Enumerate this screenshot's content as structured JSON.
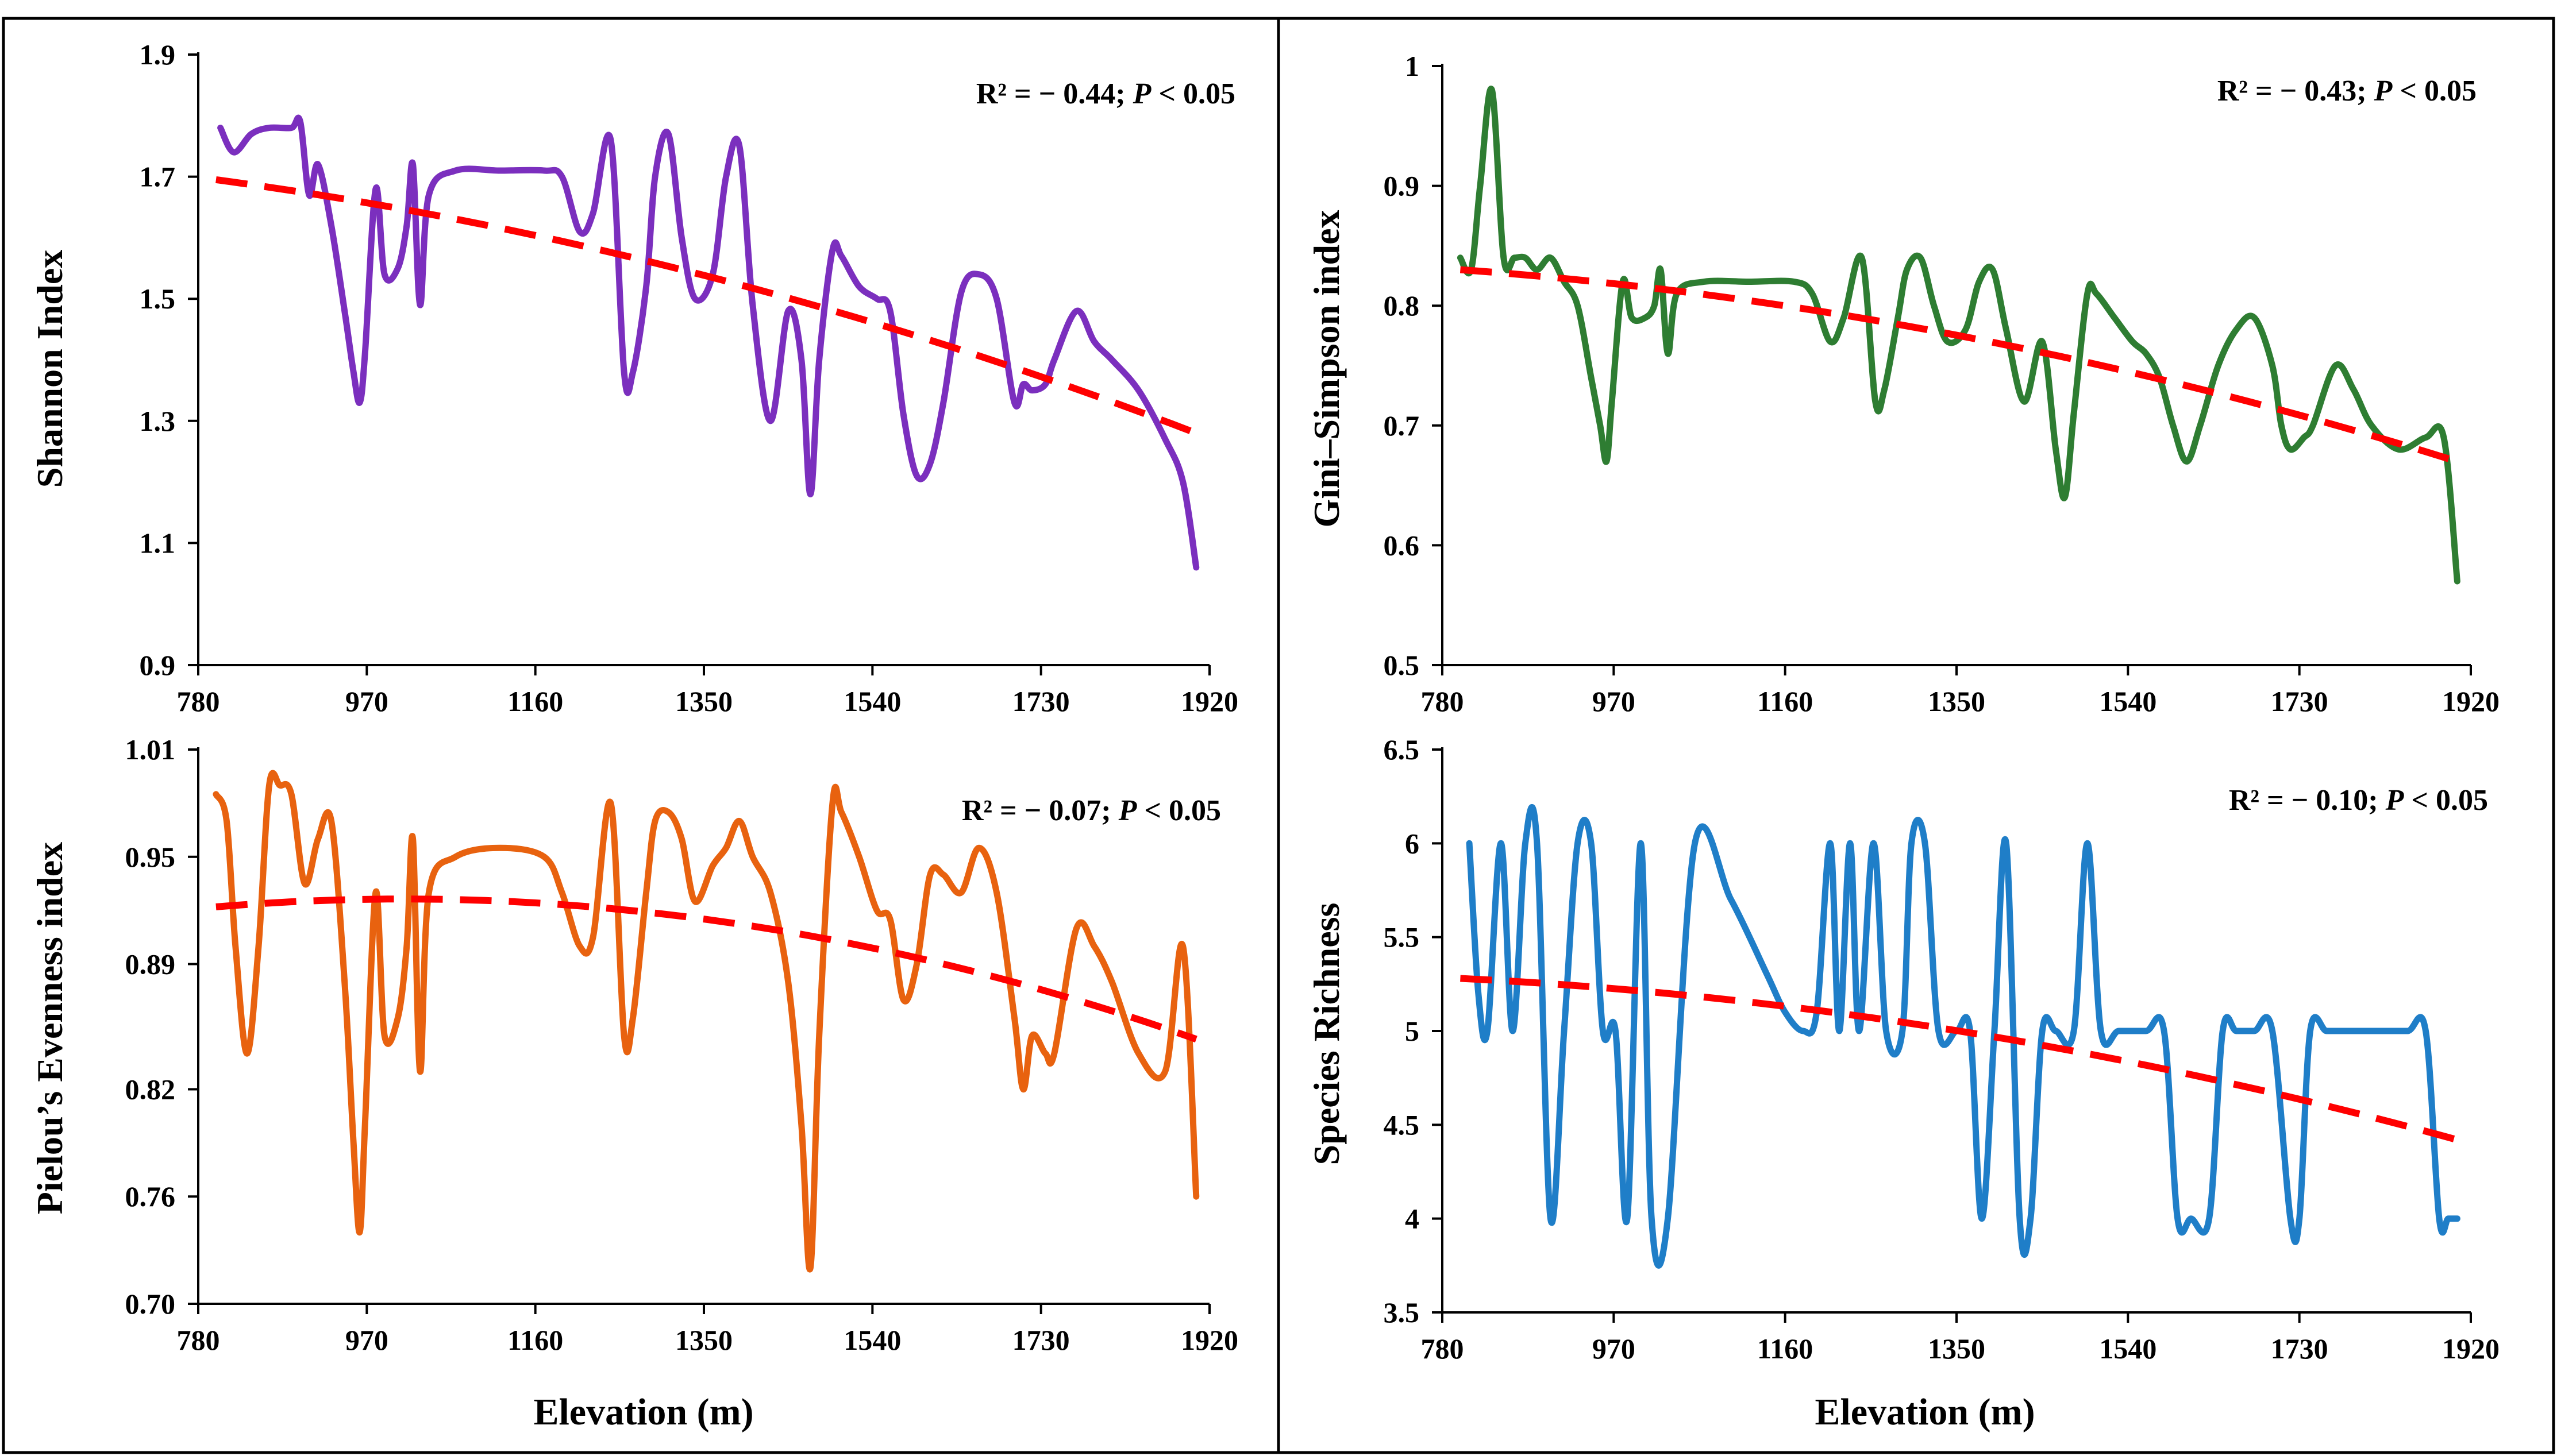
{
  "chart_data": [
    {
      "type": "line",
      "ylabel": "Shannon Index",
      "xlabel": "",
      "xlim": [
        780,
        1920
      ],
      "ylim": [
        0.9,
        1.9
      ],
      "xticks": [
        "780",
        "970",
        "1160",
        "1350",
        "1540",
        "1730",
        "1920"
      ],
      "yticks": [
        "0.9",
        "1.1",
        "1.3",
        "1.5",
        "1.7",
        "1.9"
      ],
      "annotation": {
        "pre": "R² = − 0.44; ",
        "p": "P",
        "post": " < 0.05"
      },
      "line_color": "#7B2FBE",
      "trend_color": "#FF0000",
      "series": [
        {
          "x": [
            805,
            820,
            840,
            860,
            885,
            895,
            905,
            915,
            930,
            945,
            955,
            962,
            968,
            980,
            990,
            1005,
            1015,
            1022,
            1030,
            1040,
            1070,
            1120,
            1170,
            1190,
            1210,
            1225,
            1245,
            1260,
            1270,
            1285,
            1295,
            1310,
            1325,
            1340,
            1360,
            1375,
            1390,
            1405,
            1425,
            1445,
            1460,
            1470,
            1480,
            1495,
            1505,
            1525,
            1545,
            1560,
            1575,
            1590,
            1605,
            1620,
            1640,
            1660,
            1680,
            1700,
            1710,
            1720,
            1735,
            1745,
            1770,
            1790,
            1810,
            1840,
            1870,
            1890,
            1905
          ],
          "y": [
            1.78,
            1.74,
            1.77,
            1.78,
            1.78,
            1.79,
            1.67,
            1.72,
            1.62,
            1.48,
            1.38,
            1.33,
            1.41,
            1.68,
            1.54,
            1.55,
            1.62,
            1.72,
            1.49,
            1.67,
            1.71,
            1.71,
            1.71,
            1.7,
            1.61,
            1.64,
            1.76,
            1.38,
            1.38,
            1.52,
            1.7,
            1.77,
            1.6,
            1.5,
            1.54,
            1.7,
            1.75,
            1.49,
            1.3,
            1.48,
            1.4,
            1.18,
            1.4,
            1.58,
            1.57,
            1.52,
            1.5,
            1.48,
            1.31,
            1.21,
            1.23,
            1.33,
            1.51,
            1.54,
            1.5,
            1.33,
            1.36,
            1.35,
            1.36,
            1.4,
            1.48,
            1.43,
            1.4,
            1.35,
            1.27,
            1.2,
            1.06
          ]
        }
      ],
      "trend": {
        "x": [
          800,
          1905
        ],
        "y": [
          1.695,
          1.28
        ],
        "curvature": -0.05
      }
    },
    {
      "type": "line",
      "ylabel": "Gini–Simpson index",
      "xlabel": "",
      "xlim": [
        780,
        1920
      ],
      "ylim": [
        0.5,
        1.0
      ],
      "xticks": [
        "780",
        "970",
        "1160",
        "1350",
        "1540",
        "1730",
        "1920"
      ],
      "yticks": [
        "0.5",
        "0.6",
        "0.7",
        "0.8",
        "0.9",
        "1"
      ],
      "annotation": {
        "pre": "R² = − 0.43; ",
        "p": "P",
        "post": " < 0.05"
      },
      "line_color": "#2E7D32",
      "trend_color": "#FF0000",
      "series": [
        {
          "x": [
            800,
            812,
            822,
            835,
            848,
            860,
            872,
            885,
            900,
            915,
            930,
            945,
            955,
            962,
            968,
            980,
            990,
            1005,
            1015,
            1022,
            1030,
            1040,
            1070,
            1120,
            1170,
            1190,
            1210,
            1225,
            1245,
            1260,
            1270,
            1285,
            1295,
            1310,
            1325,
            1340,
            1360,
            1375,
            1390,
            1405,
            1425,
            1445,
            1460,
            1470,
            1480,
            1495,
            1505,
            1525,
            1545,
            1560,
            1575,
            1590,
            1605,
            1620,
            1640,
            1660,
            1680,
            1700,
            1710,
            1720,
            1735,
            1745,
            1770,
            1790,
            1810,
            1840,
            1870,
            1890,
            1905
          ],
          "y": [
            0.84,
            0.83,
            0.9,
            0.98,
            0.84,
            0.84,
            0.84,
            0.83,
            0.84,
            0.82,
            0.8,
            0.74,
            0.7,
            0.67,
            0.72,
            0.82,
            0.79,
            0.79,
            0.8,
            0.83,
            0.76,
            0.81,
            0.82,
            0.82,
            0.82,
            0.81,
            0.77,
            0.79,
            0.84,
            0.72,
            0.73,
            0.79,
            0.83,
            0.84,
            0.8,
            0.77,
            0.78,
            0.82,
            0.83,
            0.78,
            0.72,
            0.77,
            0.68,
            0.64,
            0.71,
            0.81,
            0.81,
            0.79,
            0.77,
            0.76,
            0.74,
            0.7,
            0.67,
            0.7,
            0.75,
            0.78,
            0.79,
            0.75,
            0.7,
            0.68,
            0.69,
            0.7,
            0.75,
            0.73,
            0.7,
            0.68,
            0.69,
            0.69,
            0.57
          ]
        }
      ],
      "trend": {
        "x": [
          800,
          1905
        ],
        "y": [
          0.83,
          0.67
        ],
        "curvature": -0.025
      }
    },
    {
      "type": "line",
      "ylabel": "Pielou’s Evenness index",
      "xlabel": "Elevation (m)",
      "xlim": [
        780,
        1920
      ],
      "ylim": [
        0.7,
        1.01
      ],
      "xticks": [
        "780",
        "970",
        "1160",
        "1350",
        "1540",
        "1730",
        "1920"
      ],
      "yticks": [
        "0.70",
        "0.76",
        "0.82",
        "0.89",
        "0.95",
        "1.01"
      ],
      "annotation": {
        "pre": "R² = − 0.07; ",
        "p": "P",
        "post": " < 0.05"
      },
      "line_color": "#E8620F",
      "trend_color": "#FF0000",
      "series": [
        {
          "x": [
            800,
            812,
            822,
            835,
            848,
            860,
            872,
            885,
            900,
            915,
            930,
            945,
            955,
            962,
            968,
            980,
            990,
            1005,
            1015,
            1022,
            1030,
            1040,
            1070,
            1120,
            1170,
            1190,
            1210,
            1225,
            1245,
            1260,
            1270,
            1285,
            1295,
            1310,
            1325,
            1340,
            1360,
            1375,
            1390,
            1405,
            1425,
            1445,
            1460,
            1470,
            1480,
            1495,
            1505,
            1525,
            1545,
            1560,
            1575,
            1590,
            1605,
            1620,
            1640,
            1660,
            1680,
            1700,
            1710,
            1720,
            1735,
            1745,
            1770,
            1790,
            1810,
            1840,
            1870,
            1890,
            1905
          ],
          "y": [
            0.985,
            0.97,
            0.9,
            0.84,
            0.9,
            0.99,
            0.99,
            0.985,
            0.935,
            0.96,
            0.97,
            0.88,
            0.79,
            0.74,
            0.8,
            0.93,
            0.85,
            0.86,
            0.9,
            0.96,
            0.83,
            0.93,
            0.95,
            0.955,
            0.95,
            0.93,
            0.9,
            0.905,
            0.98,
            0.85,
            0.86,
            0.93,
            0.97,
            0.975,
            0.96,
            0.925,
            0.945,
            0.955,
            0.97,
            0.95,
            0.93,
            0.88,
            0.8,
            0.72,
            0.85,
            0.98,
            0.975,
            0.95,
            0.92,
            0.915,
            0.87,
            0.89,
            0.94,
            0.94,
            0.93,
            0.955,
            0.93,
            0.86,
            0.82,
            0.85,
            0.84,
            0.84,
            0.91,
            0.9,
            0.88,
            0.84,
            0.83,
            0.9,
            0.76
          ]
        }
      ],
      "trend": {
        "x": [
          800,
          1905
        ],
        "y": [
          0.922,
          0.848
        ],
        "curvature": -0.03
      }
    },
    {
      "type": "line",
      "ylabel": "Species Richness",
      "xlabel": "Elevation (m)",
      "xlim": [
        780,
        1920
      ],
      "ylim": [
        3.5,
        6.5
      ],
      "xticks": [
        "780",
        "970",
        "1160",
        "1350",
        "1540",
        "1730",
        "1920"
      ],
      "yticks": [
        "3.5",
        "4",
        "4.5",
        "5",
        "5.5",
        "6",
        "6.5"
      ],
      "annotation": {
        "pre": "R² = − 0.10; ",
        "p": "P",
        "post": " < 0.05"
      },
      "line_color": "#1F7EC8",
      "trend_color": "#FF0000",
      "series": [
        {
          "x": [
            810,
            820,
            830,
            845,
            858,
            872,
            885,
            900,
            915,
            930,
            945,
            958,
            972,
            985,
            1000,
            1012,
            1030,
            1060,
            1100,
            1140,
            1160,
            1180,
            1195,
            1210,
            1220,
            1232,
            1242,
            1258,
            1272,
            1290,
            1300,
            1315,
            1330,
            1350,
            1365,
            1378,
            1392,
            1405,
            1420,
            1432,
            1445,
            1460,
            1480,
            1495,
            1510,
            1530,
            1560,
            1580,
            1595,
            1610,
            1630,
            1645,
            1660,
            1680,
            1700,
            1720,
            1730,
            1742,
            1760,
            1780,
            1820,
            1850,
            1870,
            1885,
            1895,
            1905
          ],
          "y": [
            6,
            5.2,
            5,
            6,
            5.0,
            6,
            6,
            4,
            5,
            6,
            6,
            5,
            5,
            4,
            6,
            4,
            4,
            6,
            5.7,
            5.3,
            5.1,
            5,
            5.1,
            6,
            5,
            6,
            5,
            6,
            5,
            5,
            6,
            6,
            5,
            5,
            5,
            4,
            5,
            6,
            4,
            4,
            5,
            5,
            5,
            6,
            5,
            5,
            5,
            5,
            4,
            4,
            4,
            5,
            5,
            5,
            5,
            4,
            4,
            5,
            5,
            5,
            5,
            5,
            5,
            4,
            4,
            4
          ]
        }
      ],
      "trend": {
        "x": [
          800,
          1905
        ],
        "y": [
          5.28,
          4.42
        ],
        "curvature": -0.15
      }
    }
  ]
}
